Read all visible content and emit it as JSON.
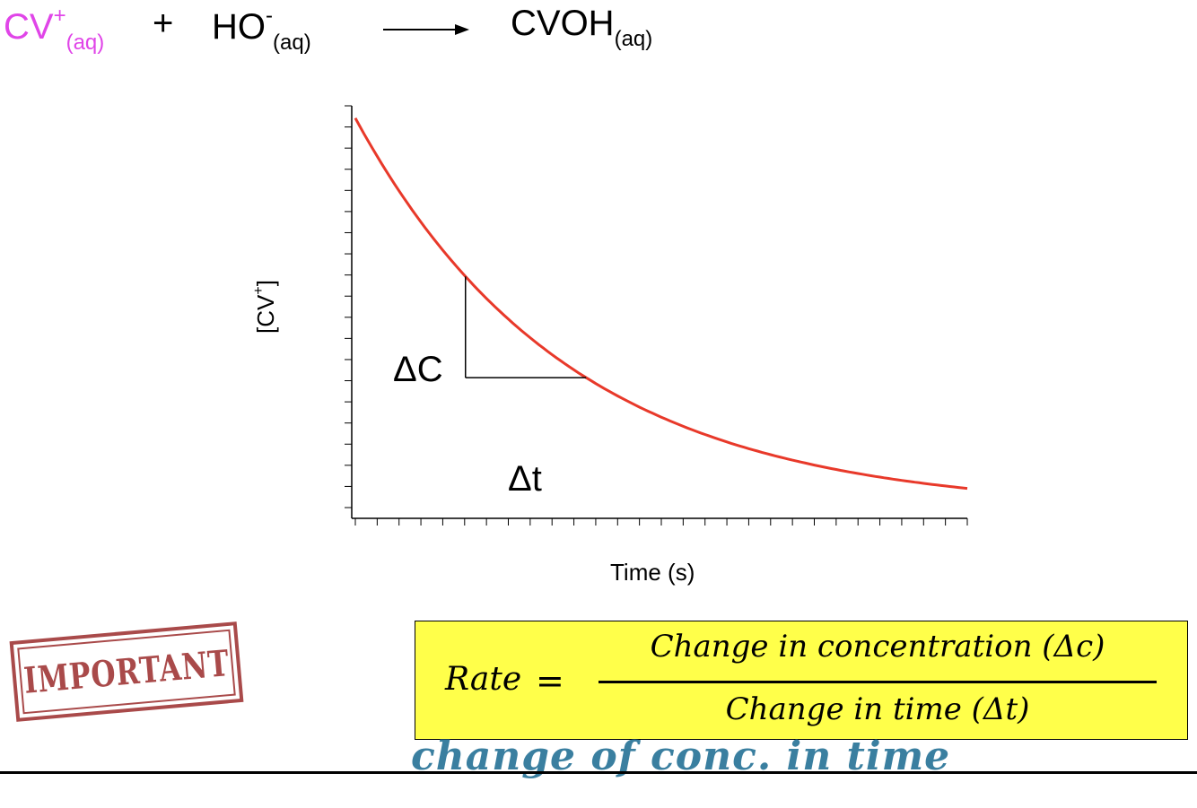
{
  "equation": {
    "reactant1": "CV",
    "reactant1_sup": "+",
    "reactant1_sub": "(aq)",
    "plus": "+",
    "reactant2": "HO",
    "reactant2_sup": "-",
    "reactant2_sub": "(aq)",
    "product": "CVOH",
    "product_sub": "(aq)"
  },
  "graph": {
    "y_label_main": "[CV",
    "y_label_sup": "+",
    "y_label_end": "]",
    "x_label": "Time (s)",
    "delta_c_label": "ΔC",
    "delta_t_label": "Δt"
  },
  "chart_data": {
    "type": "line",
    "title": "",
    "xlabel": "Time (s)",
    "ylabel": "[CV+]",
    "curve": "exponential decay",
    "x": [
      0,
      1,
      2,
      3,
      4,
      5,
      6,
      7
    ],
    "y": [
      1.0,
      0.66,
      0.44,
      0.29,
      0.19,
      0.13,
      0.09,
      0.06
    ],
    "xlim": [
      0,
      7
    ],
    "ylim": [
      0,
      1
    ],
    "curve_color": "#e8392a",
    "x_tick_count": 29,
    "y_tick_count": 20
  },
  "stamp_text": "IMPORTANT",
  "rate_formula": {
    "lhs": "Rate",
    "equals": "=",
    "numerator": "Change in concentration (Δc)",
    "denominator": "Change in time (Δt)"
  },
  "handwritten_note": "change of conc. in time",
  "colors": {
    "reactant": "#e045e8",
    "curve": "#e8392a",
    "formula_box": "#ffff4a",
    "handwriting": "#3a7fa0",
    "stamp": "#9b2b2b"
  }
}
